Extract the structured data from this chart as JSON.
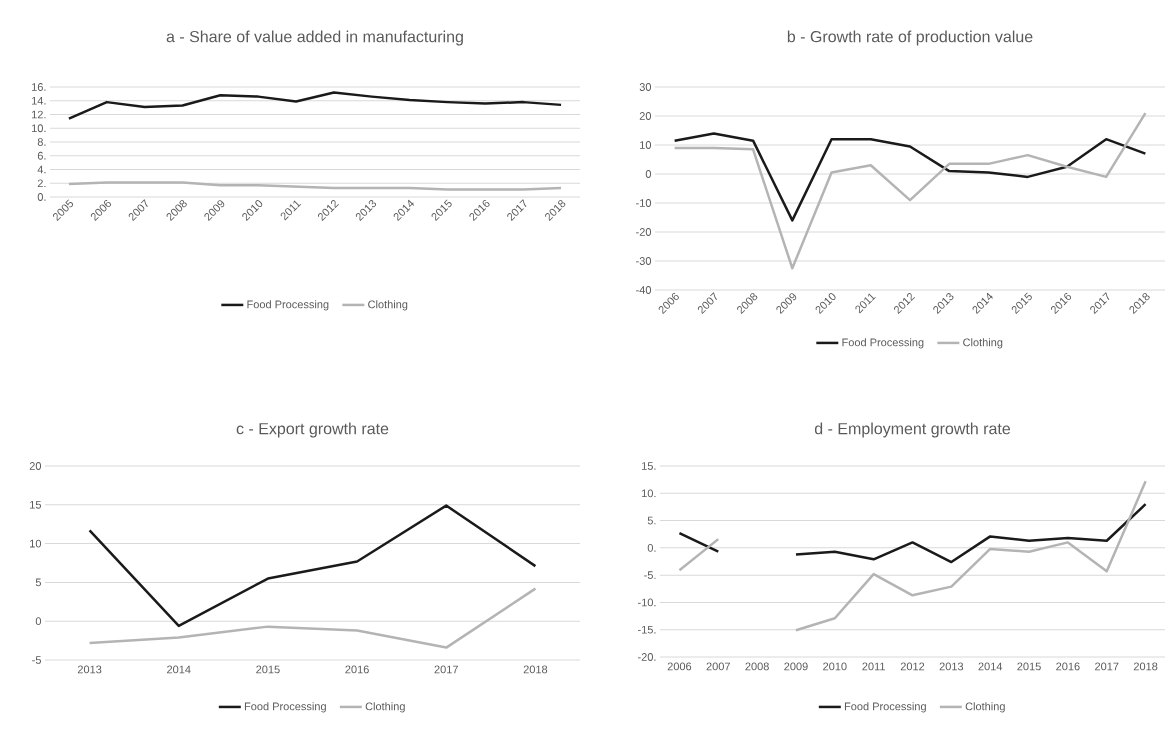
{
  "chart_data": [
    {
      "type": "line",
      "title": "a - Share of value added in manufacturing",
      "categories": [
        "2005",
        "2006",
        "2007",
        "2008",
        "2009",
        "2010",
        "2011",
        "2012",
        "2013",
        "2014",
        "2015",
        "2016",
        "2017",
        "2018"
      ],
      "series": [
        {
          "name": "Food Processing",
          "color": "#1a1a1a",
          "values": [
            11.4,
            13.8,
            13.1,
            13.3,
            14.8,
            14.6,
            13.9,
            15.2,
            14.6,
            14.1,
            13.8,
            13.6,
            13.8,
            13.4
          ]
        },
        {
          "name": "Clothing",
          "color": "#b4b4b4",
          "values": [
            1.9,
            2.1,
            2.1,
            2.1,
            1.7,
            1.7,
            1.5,
            1.3,
            1.3,
            1.3,
            1.1,
            1.1,
            1.1,
            1.3
          ]
        }
      ],
      "ylim": [
        0,
        16
      ],
      "yticks": [
        {
          "value": 0,
          "label": "0."
        },
        {
          "value": 2,
          "label": "2."
        },
        {
          "value": 4,
          "label": "4."
        },
        {
          "value": 6,
          "label": "6."
        },
        {
          "value": 8,
          "label": "8."
        },
        {
          "value": 10,
          "label": "10."
        },
        {
          "value": 12,
          "label": "12."
        },
        {
          "value": 14,
          "label": "14."
        },
        {
          "value": 16,
          "label": "16."
        }
      ],
      "grid": "y",
      "legend": "bottom"
    },
    {
      "type": "line",
      "title": "b - Growth rate of production value",
      "categories": [
        "2006",
        "2007",
        "2008",
        "2009",
        "2010",
        "2011",
        "2012",
        "2013",
        "2014",
        "2015",
        "2016",
        "2017",
        "2018"
      ],
      "series": [
        {
          "name": "Food Processing",
          "color": "#1a1a1a",
          "values": [
            11.5,
            14,
            11.5,
            -16,
            12,
            12,
            9.5,
            1,
            0.5,
            -1,
            2.5,
            12,
            7
          ]
        },
        {
          "name": "Clothing",
          "color": "#b4b4b4",
          "values": [
            9,
            9,
            8.5,
            -32.5,
            0.5,
            3,
            -9,
            3.5,
            3.5,
            6.5,
            2.5,
            -1,
            21
          ]
        }
      ],
      "ylim": [
        -40,
        30
      ],
      "yticks": [
        -40,
        -30,
        -20,
        -10,
        0,
        10,
        20,
        30
      ],
      "grid": "y",
      "legend": "bottom"
    },
    {
      "type": "line",
      "title": "c - Export growth rate",
      "categories": [
        "2013",
        "2014",
        "2015",
        "2016",
        "2017",
        "2018"
      ],
      "series": [
        {
          "name": "Food Processing",
          "color": "#1a1a1a",
          "values": [
            11.7,
            -0.6,
            5.5,
            7.7,
            14.9,
            7.1
          ]
        },
        {
          "name": "Clothing",
          "color": "#b4b4b4",
          "values": [
            -2.8,
            -2.1,
            -0.7,
            -1.2,
            -3.4,
            4.2
          ]
        }
      ],
      "ylim": [
        -5,
        20
      ],
      "yticks": [
        -5,
        0,
        5,
        10,
        15,
        20
      ],
      "grid": "y",
      "legend": "bottom"
    },
    {
      "type": "line",
      "title": "d - Employment growth rate",
      "categories": [
        "2006",
        "2007",
        "2008",
        "2009",
        "2010",
        "2011",
        "2012",
        "2013",
        "2014",
        "2015",
        "2016",
        "2017",
        "2018"
      ],
      "series": [
        {
          "name": "Food Processing",
          "color": "#1a1a1a",
          "values": [
            2.7,
            -0.7,
            null,
            -1.2,
            -0.7,
            -2.1,
            1.0,
            -2.6,
            2.1,
            1.3,
            1.8,
            1.3,
            8.0
          ]
        },
        {
          "name": "Clothing",
          "color": "#b4b4b4",
          "values": [
            -4.1,
            1.6,
            null,
            -15.1,
            -12.9,
            -4.8,
            -8.7,
            -7.1,
            -0.2,
            -0.7,
            1.0,
            -4.3,
            12.2
          ]
        }
      ],
      "ylim": [
        -20,
        15
      ],
      "yticks": [
        {
          "value": -20,
          "label": "-20."
        },
        {
          "value": -15,
          "label": "-15."
        },
        {
          "value": -10,
          "label": "-10."
        },
        {
          "value": -5,
          "label": "-5."
        },
        {
          "value": 0,
          "label": "0."
        },
        {
          "value": 5,
          "label": "5."
        },
        {
          "value": 10,
          "label": "10."
        },
        {
          "value": 15,
          "label": "15."
        }
      ],
      "grid": "y",
      "legend": "bottom"
    }
  ]
}
